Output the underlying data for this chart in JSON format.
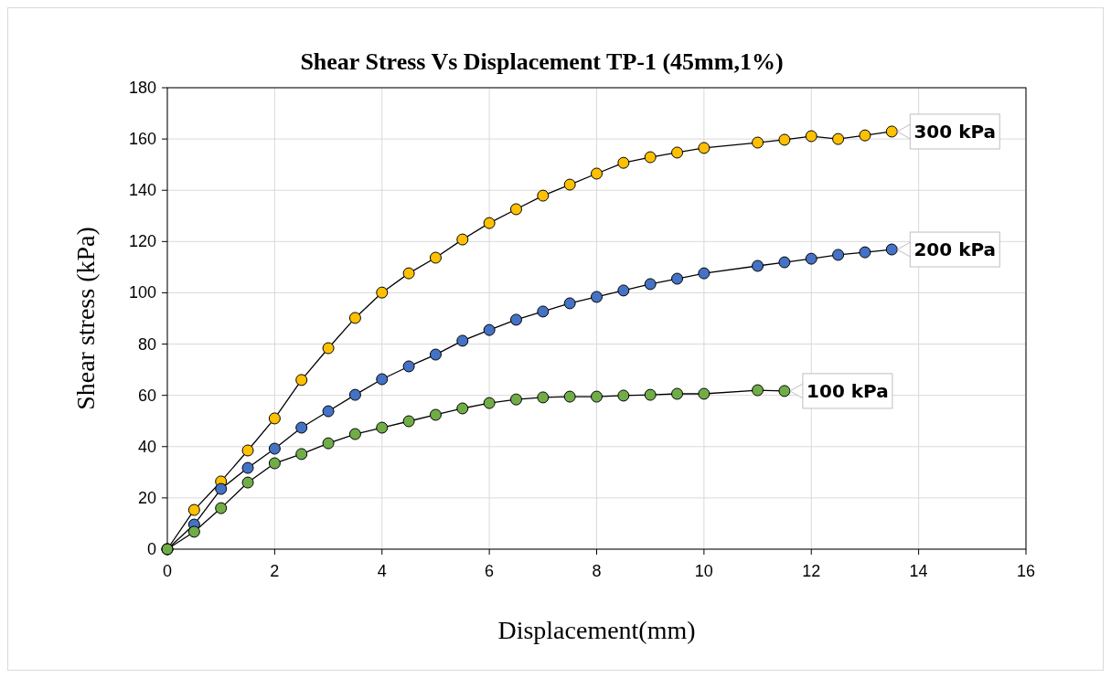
{
  "chart_data": {
    "type": "line",
    "title": "Shear Stress Vs Displacement TP-1 (45mm,1%)",
    "xlabel": "Displacement(mm)",
    "ylabel": "Shear stress (kPa)",
    "xlim": [
      0,
      16
    ],
    "xticks": [
      0,
      2,
      4,
      6,
      8,
      10,
      12,
      14,
      16
    ],
    "ylim": [
      0,
      180
    ],
    "yticks": [
      0,
      20,
      40,
      60,
      80,
      100,
      120,
      140,
      160,
      180
    ],
    "grid": true,
    "marker": "circle",
    "series": [
      {
        "name": "300 kPa",
        "color": "#ffc000",
        "x": [
          0,
          0.5,
          1,
          1.5,
          2,
          2.5,
          3,
          3.5,
          4,
          4.5,
          5,
          5.5,
          6,
          6.5,
          7,
          7.5,
          8,
          8.5,
          9,
          9.5,
          10,
          11,
          11.5,
          12,
          12.5,
          13,
          13.5
        ],
        "values": [
          0,
          15.3,
          26.4,
          38.5,
          51,
          66,
          78.4,
          90.2,
          100.1,
          107.6,
          113.7,
          120.8,
          127.2,
          132.6,
          137.9,
          142.2,
          146.5,
          150.7,
          152.9,
          154.7,
          156.5,
          158.6,
          159.7,
          161.1,
          160,
          161.4,
          162.9
        ]
      },
      {
        "name": "200 kPa",
        "color": "#4472c4",
        "x": [
          0,
          0.5,
          1,
          1.5,
          2,
          2.5,
          3,
          3.5,
          4,
          4.5,
          5,
          5.5,
          6,
          6.5,
          7,
          7.5,
          8,
          8.5,
          9,
          9.5,
          10,
          11,
          11.5,
          12,
          12.5,
          13,
          13.5
        ],
        "values": [
          0,
          9.6,
          23.5,
          31.7,
          39.2,
          47.4,
          53.8,
          60.2,
          66.3,
          71.3,
          75.9,
          81.3,
          85.5,
          89.5,
          92.7,
          95.9,
          98.4,
          100.9,
          103.4,
          105.5,
          107.6,
          110.5,
          111.9,
          113.3,
          114.8,
          115.8,
          116.9
        ]
      },
      {
        "name": "100 kPa",
        "color": "#70ad47",
        "x": [
          0,
          0.5,
          1,
          1.5,
          2,
          2.5,
          3,
          3.5,
          4,
          4.5,
          5,
          5.5,
          6,
          6.5,
          7,
          7.5,
          8,
          8.5,
          9,
          9.5,
          10,
          11,
          11.5
        ],
        "values": [
          0,
          6.8,
          16,
          26,
          33.5,
          37.1,
          41.3,
          44.9,
          47.4,
          49.9,
          52.4,
          54.9,
          57,
          58.4,
          59.2,
          59.5,
          59.5,
          59.9,
          60.2,
          60.6,
          60.6,
          62,
          61.7
        ]
      }
    ]
  }
}
